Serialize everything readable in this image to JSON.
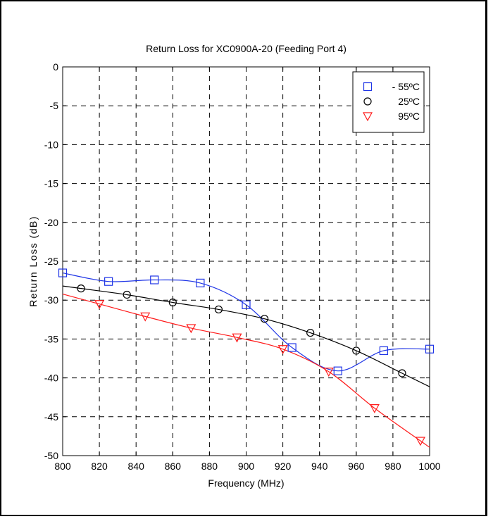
{
  "chart_data": {
    "type": "line",
    "title": "Return Loss for XC0900A-20 (Feeding Port 4)",
    "xlabel": "Frequency (MHz)",
    "ylabel": "Return Loss (dB)",
    "xlim": [
      800,
      1000
    ],
    "ylim": [
      -50,
      0
    ],
    "xticks": [
      800,
      820,
      840,
      860,
      880,
      900,
      920,
      940,
      960,
      980,
      1000
    ],
    "yticks": [
      0,
      -5,
      -10,
      -15,
      -20,
      -25,
      -30,
      -35,
      -40,
      -45,
      -50
    ],
    "grid": true,
    "legend_position": "top-right",
    "series": [
      {
        "name": " - 55ºC",
        "color": "#1f35e6",
        "marker": "square",
        "x": [
          800,
          825,
          850,
          875,
          900,
          925,
          950,
          975,
          1000
        ],
        "y": [
          -26.5,
          -27.6,
          -27.4,
          -27.8,
          -30.6,
          -36.1,
          -39.1,
          -36.5,
          -36.3
        ]
      },
      {
        "name": "25ºC",
        "color": "#000000",
        "marker": "circle",
        "x": [
          810,
          835,
          860,
          885,
          910,
          935,
          960,
          985
        ],
        "y": [
          -28.5,
          -29.3,
          -30.3,
          -31.2,
          -32.4,
          -34.2,
          -36.5,
          -39.4
        ]
      },
      {
        "name": "95ºC",
        "color": "#ff1a1a",
        "marker": "triangle-down",
        "x": [
          820,
          845,
          870,
          895,
          920,
          945,
          970,
          995
        ],
        "y": [
          -30.5,
          -32.1,
          -33.6,
          -34.8,
          -36.3,
          -39.2,
          -43.9,
          -48.1
        ]
      }
    ]
  }
}
